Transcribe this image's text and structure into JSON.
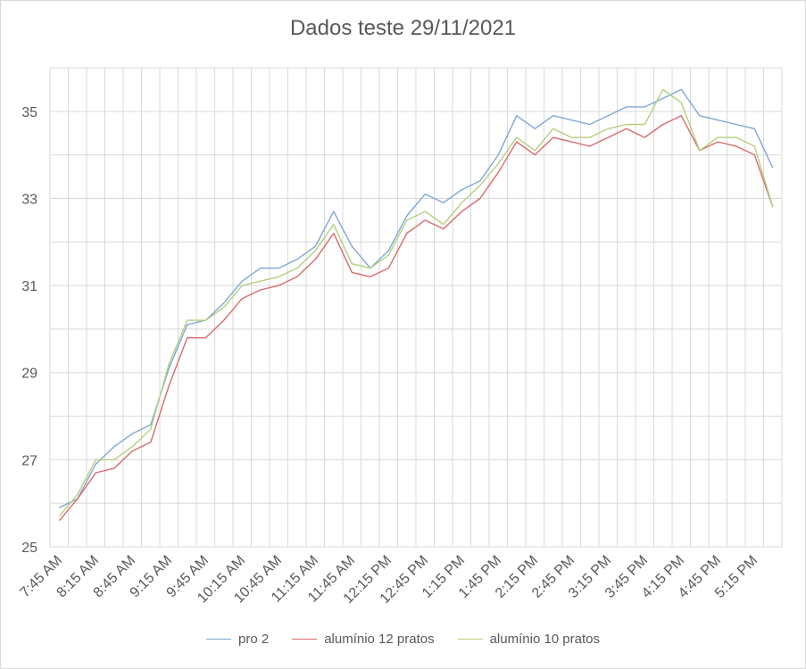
{
  "chart_data": {
    "type": "line",
    "title": "Dados teste 29/11/2021",
    "xlabel": "",
    "ylabel": "",
    "ylim": [
      25,
      36
    ],
    "yticks": [
      25,
      27,
      29,
      31,
      33,
      35
    ],
    "grid": true,
    "legend_position": "bottom",
    "x": [
      "7:45 AM",
      "8:00 AM",
      "8:15 AM",
      "8:30 AM",
      "8:45 AM",
      "9:00 AM",
      "9:15 AM",
      "9:30 AM",
      "9:45 AM",
      "10:00 AM",
      "10:15 AM",
      "10:30 AM",
      "10:45 AM",
      "11:00 AM",
      "11:15 AM",
      "11:30 AM",
      "11:45 AM",
      "12:00 PM",
      "12:15 PM",
      "12:30 PM",
      "12:45 PM",
      "1:00 PM",
      "1:15 PM",
      "1:30 PM",
      "1:45 PM",
      "2:00 PM",
      "2:15 PM",
      "2:30 PM",
      "2:45 PM",
      "3:00 PM",
      "3:15 PM",
      "3:30 PM",
      "3:45 PM",
      "4:00 PM",
      "4:15 PM",
      "4:30 PM",
      "4:45 PM",
      "5:00 PM",
      "5:15 PM",
      "5:30 PM"
    ],
    "xtick_labels": [
      "7:45 AM",
      "8:15 AM",
      "8:45 AM",
      "9:15 AM",
      "9:45 AM",
      "10:15 AM",
      "10:45 AM",
      "11:15 AM",
      "11:45 AM",
      "12:15 PM",
      "12:45 PM",
      "1:15 PM",
      "1:45 PM",
      "2:15 PM",
      "2:45 PM",
      "3:15 PM",
      "3:45 PM",
      "4:15 PM",
      "4:45 PM",
      "5:15 PM"
    ],
    "series": [
      {
        "name": "pro 2",
        "color": "#7da7d9",
        "values": [
          25.9,
          26.1,
          26.9,
          27.3,
          27.6,
          27.8,
          29.1,
          30.1,
          30.2,
          30.6,
          31.1,
          31.4,
          31.4,
          31.6,
          31.9,
          32.7,
          31.9,
          31.4,
          31.8,
          32.6,
          33.1,
          32.9,
          33.2,
          33.4,
          34.0,
          34.9,
          34.6,
          34.9,
          34.8,
          34.7,
          34.9,
          35.1,
          35.1,
          35.3,
          35.5,
          34.9,
          34.8,
          34.7,
          34.6,
          33.7
        ]
      },
      {
        "name": "alumínio 12 pratos",
        "color": "#d96b6b",
        "values": [
          25.6,
          26.1,
          26.7,
          26.8,
          27.2,
          27.4,
          28.7,
          29.8,
          29.8,
          30.2,
          30.7,
          30.9,
          31.0,
          31.2,
          31.6,
          32.2,
          31.3,
          31.2,
          31.4,
          32.2,
          32.5,
          32.3,
          32.7,
          33.0,
          33.6,
          34.3,
          34.0,
          34.4,
          34.3,
          34.2,
          34.4,
          34.6,
          34.4,
          34.7,
          34.9,
          34.1,
          34.3,
          34.2,
          34.0,
          32.8
        ]
      },
      {
        "name": "alumínio 10 pratos",
        "color": "#b4cf7d",
        "values": [
          25.7,
          26.2,
          27.0,
          27.0,
          27.3,
          27.7,
          29.2,
          30.2,
          30.2,
          30.5,
          31.0,
          31.1,
          31.2,
          31.4,
          31.8,
          32.4,
          31.5,
          31.4,
          31.7,
          32.5,
          32.7,
          32.4,
          32.9,
          33.3,
          33.8,
          34.4,
          34.1,
          34.6,
          34.4,
          34.4,
          34.6,
          34.7,
          34.7,
          35.5,
          35.2,
          34.1,
          34.4,
          34.4,
          34.2,
          32.8
        ]
      }
    ]
  }
}
